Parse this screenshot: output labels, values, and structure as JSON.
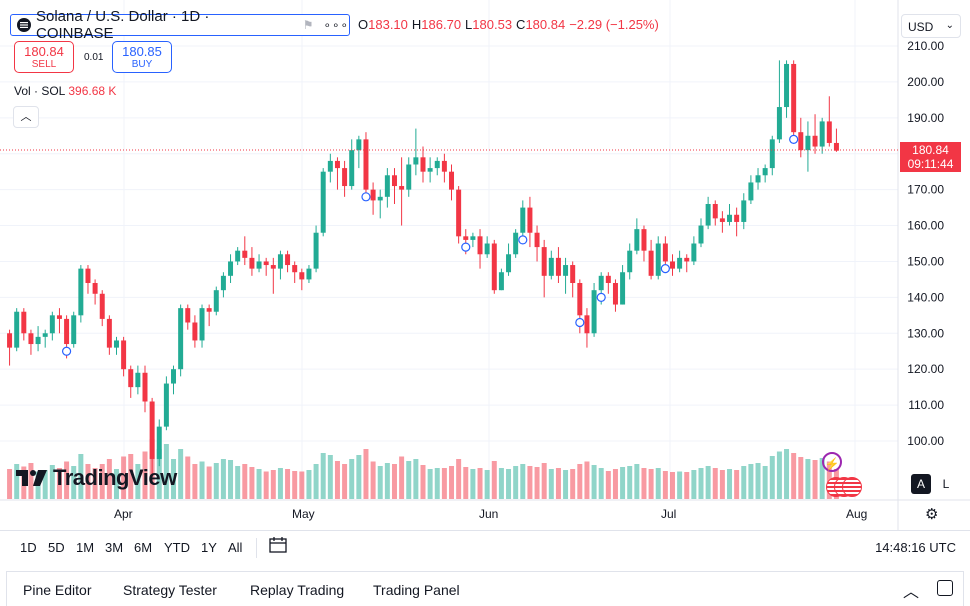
{
  "header": {
    "symbol_title": "Solana / U.S. Dollar · 1D · COINBASE",
    "ohlc": {
      "open_label": "O",
      "open": "183.10",
      "high_label": "H",
      "high": "186.70",
      "low_label": "L",
      "low": "180.53",
      "close_label": "C",
      "close": "180.84",
      "change": "−2.29 (−1.25%)"
    },
    "more_icon": "ellipsis-icon"
  },
  "trade": {
    "sell_price": "180.84",
    "sell_label": "SELL",
    "spread": "0.01",
    "buy_price": "180.85",
    "buy_label": "BUY"
  },
  "volume_legend": {
    "label": "Vol · SOL",
    "value": "396.68 K"
  },
  "currency": {
    "value": "USD"
  },
  "price_tag": {
    "price": "180.84",
    "countdown": "09:11:44"
  },
  "price_axis": [
    "210.00",
    "200.00",
    "190.00",
    "180.00",
    "170.00",
    "160.00",
    "150.00",
    "140.00",
    "130.00",
    "120.00",
    "110.00",
    "100.00"
  ],
  "time_axis": [
    "Apr",
    "May",
    "Jun",
    "Jul",
    "Aug"
  ],
  "brand": {
    "name": "TradingView"
  },
  "scale_modes": {
    "auto": "A",
    "log": "L"
  },
  "ranges": [
    "1D",
    "5D",
    "1M",
    "3M",
    "6M",
    "YTD",
    "1Y",
    "All"
  ],
  "clock": "14:48:16 UTC",
  "bottom_tabs": [
    "Pine Editor",
    "Strategy Tester",
    "Replay Trading",
    "Trading Panel"
  ],
  "colors": {
    "up": "#22ab94",
    "down": "#f23645",
    "accent": "#2962ff",
    "text": "#131722"
  },
  "chart_data": {
    "type": "candlestick",
    "symbol": "SOLUSD",
    "interval": "1D",
    "ylim": [
      90,
      212
    ],
    "current_price": 180.84,
    "candles": [
      [
        130,
        126,
        131,
        121
      ],
      [
        126,
        136,
        137,
        125
      ],
      [
        136,
        130,
        137,
        128
      ],
      [
        130,
        127,
        131,
        124
      ],
      [
        127,
        129,
        132,
        125
      ],
      [
        129,
        130,
        131,
        126
      ],
      [
        130,
        135,
        136,
        128
      ],
      [
        135,
        134,
        137,
        130
      ],
      [
        134,
        127,
        135,
        123
      ],
      [
        127,
        135,
        136,
        126
      ],
      [
        135,
        148,
        149,
        133
      ],
      [
        148,
        144,
        149,
        141
      ],
      [
        144,
        141,
        145,
        138
      ],
      [
        141,
        134,
        142,
        132
      ],
      [
        134,
        126,
        135,
        124
      ],
      [
        126,
        128,
        129,
        124
      ],
      [
        128,
        120,
        129,
        118
      ],
      [
        120,
        115,
        121,
        112
      ],
      [
        115,
        119,
        121,
        113
      ],
      [
        119,
        111,
        121,
        108
      ],
      [
        111,
        95,
        112,
        90
      ],
      [
        95,
        104,
        106,
        93
      ],
      [
        104,
        116,
        118,
        103
      ],
      [
        116,
        120,
        121,
        113
      ],
      [
        120,
        137,
        138,
        118
      ],
      [
        137,
        133,
        138,
        131
      ],
      [
        133,
        128,
        135,
        126
      ],
      [
        128,
        137,
        138,
        126
      ],
      [
        137,
        136,
        138,
        132
      ],
      [
        136,
        142,
        143,
        135
      ],
      [
        142,
        146,
        147,
        140
      ],
      [
        146,
        150,
        152,
        144
      ],
      [
        150,
        153,
        154,
        149
      ],
      [
        153,
        151,
        157,
        149
      ],
      [
        151,
        148,
        154,
        146
      ],
      [
        148,
        150,
        152,
        147
      ],
      [
        150,
        149,
        151,
        146
      ],
      [
        149,
        148,
        151,
        141
      ],
      [
        148,
        152,
        153,
        145
      ],
      [
        152,
        149,
        153,
        147
      ],
      [
        149,
        147,
        150,
        144
      ],
      [
        147,
        145,
        148,
        142
      ],
      [
        145,
        148,
        149,
        144
      ],
      [
        148,
        158,
        160,
        147
      ],
      [
        158,
        175,
        176,
        157
      ],
      [
        175,
        178,
        180,
        172
      ],
      [
        178,
        176,
        179,
        170
      ],
      [
        176,
        171,
        178,
        168
      ],
      [
        171,
        181,
        184,
        170
      ],
      [
        181,
        184,
        185,
        176
      ],
      [
        184,
        170,
        186,
        168
      ],
      [
        170,
        167,
        172,
        163
      ],
      [
        167,
        168,
        170,
        162
      ],
      [
        168,
        174,
        176,
        165
      ],
      [
        174,
        171,
        176,
        166
      ],
      [
        171,
        170,
        179,
        160
      ],
      [
        170,
        177,
        179,
        168
      ],
      [
        177,
        179,
        187,
        174
      ],
      [
        179,
        175,
        182,
        172
      ],
      [
        175,
        176,
        179,
        172
      ],
      [
        176,
        178,
        179,
        174
      ],
      [
        178,
        175,
        180,
        172
      ],
      [
        175,
        170,
        177,
        167
      ],
      [
        170,
        157,
        171,
        155
      ],
      [
        157,
        156,
        159,
        152
      ],
      [
        156,
        157,
        158,
        154
      ],
      [
        157,
        152,
        159,
        148
      ],
      [
        152,
        155,
        157,
        151
      ],
      [
        155,
        142,
        156,
        141
      ],
      [
        142,
        147,
        148,
        142
      ],
      [
        147,
        152,
        155,
        146
      ],
      [
        152,
        158,
        159,
        151
      ],
      [
        158,
        165,
        167,
        156
      ],
      [
        165,
        158,
        168,
        154
      ],
      [
        158,
        154,
        160,
        150
      ],
      [
        154,
        146,
        156,
        140
      ],
      [
        146,
        151,
        153,
        145
      ],
      [
        151,
        146,
        154,
        144
      ],
      [
        146,
        149,
        151,
        141
      ],
      [
        149,
        144,
        150,
        140
      ],
      [
        144,
        135,
        145,
        130
      ],
      [
        135,
        130,
        137,
        126
      ],
      [
        130,
        142,
        144,
        129
      ],
      [
        142,
        146,
        147,
        138
      ],
      [
        146,
        144,
        147,
        141
      ],
      [
        144,
        138,
        145,
        136
      ],
      [
        138,
        147,
        149,
        138
      ],
      [
        147,
        153,
        155,
        145
      ],
      [
        153,
        159,
        162,
        152
      ],
      [
        159,
        153,
        160,
        150
      ],
      [
        153,
        146,
        156,
        145
      ],
      [
        146,
        155,
        157,
        145
      ],
      [
        155,
        150,
        157,
        148
      ],
      [
        150,
        148,
        152,
        146
      ],
      [
        148,
        151,
        153,
        147
      ],
      [
        151,
        150,
        152,
        147
      ],
      [
        150,
        155,
        157,
        149
      ],
      [
        155,
        160,
        162,
        154
      ],
      [
        160,
        166,
        168,
        159
      ],
      [
        166,
        162,
        167,
        160
      ],
      [
        162,
        161,
        164,
        158
      ],
      [
        161,
        163,
        166,
        160
      ],
      [
        163,
        161,
        165,
        157
      ],
      [
        161,
        167,
        169,
        159
      ],
      [
        167,
        172,
        174,
        166
      ],
      [
        172,
        174,
        176,
        170
      ],
      [
        174,
        176,
        177,
        172
      ],
      [
        176,
        184,
        185,
        174
      ],
      [
        184,
        193,
        206,
        183
      ],
      [
        193,
        205,
        206,
        190
      ],
      [
        205,
        186,
        206,
        184
      ],
      [
        186,
        181,
        190,
        179
      ],
      [
        181,
        185,
        189,
        175
      ],
      [
        185,
        182,
        191,
        180
      ],
      [
        182,
        189,
        190,
        180
      ],
      [
        189,
        183,
        196,
        182
      ],
      [
        183,
        180.84,
        187,
        180.53
      ]
    ],
    "volume": [
      [
        60,
        "down"
      ],
      [
        70,
        "up"
      ],
      [
        65,
        "down"
      ],
      [
        72,
        "down"
      ],
      [
        55,
        "up"
      ],
      [
        58,
        "up"
      ],
      [
        68,
        "up"
      ],
      [
        62,
        "down"
      ],
      [
        75,
        "down"
      ],
      [
        66,
        "up"
      ],
      [
        90,
        "up"
      ],
      [
        70,
        "down"
      ],
      [
        62,
        "down"
      ],
      [
        70,
        "down"
      ],
      [
        80,
        "down"
      ],
      [
        60,
        "up"
      ],
      [
        85,
        "down"
      ],
      [
        90,
        "down"
      ],
      [
        70,
        "up"
      ],
      [
        95,
        "down"
      ],
      [
        120,
        "down"
      ],
      [
        100,
        "up"
      ],
      [
        110,
        "up"
      ],
      [
        80,
        "up"
      ],
      [
        100,
        "up"
      ],
      [
        85,
        "down"
      ],
      [
        70,
        "down"
      ],
      [
        75,
        "up"
      ],
      [
        65,
        "down"
      ],
      [
        72,
        "up"
      ],
      [
        80,
        "up"
      ],
      [
        78,
        "up"
      ],
      [
        66,
        "up"
      ],
      [
        70,
        "down"
      ],
      [
        64,
        "down"
      ],
      [
        60,
        "up"
      ],
      [
        55,
        "down"
      ],
      [
        58,
        "down"
      ],
      [
        62,
        "up"
      ],
      [
        60,
        "down"
      ],
      [
        56,
        "down"
      ],
      [
        55,
        "down"
      ],
      [
        58,
        "up"
      ],
      [
        70,
        "up"
      ],
      [
        92,
        "up"
      ],
      [
        88,
        "up"
      ],
      [
        76,
        "down"
      ],
      [
        70,
        "down"
      ],
      [
        80,
        "up"
      ],
      [
        88,
        "up"
      ],
      [
        100,
        "down"
      ],
      [
        75,
        "down"
      ],
      [
        66,
        "up"
      ],
      [
        72,
        "up"
      ],
      [
        70,
        "down"
      ],
      [
        85,
        "down"
      ],
      [
        76,
        "up"
      ],
      [
        80,
        "up"
      ],
      [
        68,
        "down"
      ],
      [
        60,
        "up"
      ],
      [
        62,
        "up"
      ],
      [
        62,
        "down"
      ],
      [
        66,
        "down"
      ],
      [
        80,
        "down"
      ],
      [
        64,
        "down"
      ],
      [
        60,
        "up"
      ],
      [
        62,
        "down"
      ],
      [
        58,
        "up"
      ],
      [
        76,
        "down"
      ],
      [
        62,
        "up"
      ],
      [
        60,
        "up"
      ],
      [
        66,
        "up"
      ],
      [
        70,
        "up"
      ],
      [
        66,
        "down"
      ],
      [
        64,
        "down"
      ],
      [
        72,
        "down"
      ],
      [
        60,
        "up"
      ],
      [
        62,
        "down"
      ],
      [
        58,
        "up"
      ],
      [
        60,
        "down"
      ],
      [
        70,
        "down"
      ],
      [
        75,
        "down"
      ],
      [
        68,
        "up"
      ],
      [
        62,
        "up"
      ],
      [
        56,
        "down"
      ],
      [
        60,
        "down"
      ],
      [
        64,
        "up"
      ],
      [
        66,
        "up"
      ],
      [
        70,
        "up"
      ],
      [
        62,
        "down"
      ],
      [
        60,
        "down"
      ],
      [
        62,
        "up"
      ],
      [
        56,
        "down"
      ],
      [
        54,
        "down"
      ],
      [
        55,
        "up"
      ],
      [
        54,
        "down"
      ],
      [
        58,
        "up"
      ],
      [
        62,
        "up"
      ],
      [
        66,
        "up"
      ],
      [
        62,
        "down"
      ],
      [
        58,
        "down"
      ],
      [
        60,
        "up"
      ],
      [
        58,
        "down"
      ],
      [
        66,
        "up"
      ],
      [
        70,
        "up"
      ],
      [
        72,
        "up"
      ],
      [
        66,
        "up"
      ],
      [
        86,
        "up"
      ],
      [
        95,
        "up"
      ],
      [
        100,
        "up"
      ],
      [
        92,
        "down"
      ],
      [
        84,
        "down"
      ],
      [
        80,
        "up"
      ],
      [
        78,
        "down"
      ],
      [
        82,
        "up"
      ],
      [
        75,
        "down"
      ],
      [
        60,
        "down"
      ]
    ]
  }
}
